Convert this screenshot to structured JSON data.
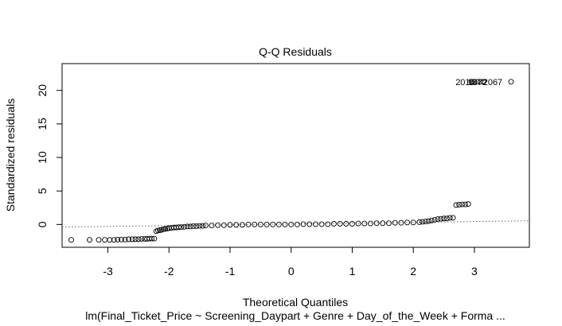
{
  "chart_data": {
    "type": "scatter",
    "title": "Q-Q Residuals",
    "xlabel": "Theoretical Quantiles",
    "ylabel": "Standardized residuals",
    "subtitle": "lm(Final_Ticket_Price ~ Screening_Daypart + Genre + Day_of_the_Week + Forma ...",
    "xlim": [
      -3.75,
      3.9
    ],
    "ylim": [
      -3.4,
      24.0
    ],
    "xticks": [
      -3,
      -2,
      -1,
      0,
      1,
      2,
      3
    ],
    "yticks": [
      0,
      5,
      10,
      15,
      20
    ],
    "xtick_labels": [
      "-3",
      "-2",
      "-1",
      "0",
      "1",
      "2",
      "3"
    ],
    "ytick_labels": [
      "0",
      "5",
      "10",
      "15",
      "20"
    ],
    "reference_line": {
      "x": [
        -3.75,
        3.9
      ],
      "y": [
        -0.38,
        0.55
      ]
    },
    "point_labels": [
      {
        "text": "2067",
        "x": 3.3,
        "y": 21.3
      },
      {
        "text": "2016",
        "x": 2.85,
        "y": 21.3
      },
      {
        "text": "1872",
        "x": 3.05,
        "y": 21.3
      }
    ],
    "series": [
      {
        "x": [
          -3.6,
          -3.3,
          -3.15,
          -3.05,
          -2.97,
          -2.9,
          -2.84,
          -2.78,
          -2.72,
          -2.66,
          -2.6,
          -2.55,
          -2.5,
          -2.45,
          -2.4,
          -2.36,
          -2.32,
          -2.28,
          -2.24,
          -2.21,
          -2.18,
          -2.15,
          -2.12,
          -2.09,
          -2.06,
          -2.03,
          -2.0,
          -1.96,
          -1.92,
          -1.88,
          -1.84,
          -1.8,
          -1.75,
          -1.7,
          -1.65,
          -1.6,
          -1.55,
          -1.5,
          -1.45,
          -1.4,
          -1.3,
          -1.2,
          -1.1,
          -1.0,
          -0.9,
          -0.8,
          -0.7,
          -0.6,
          -0.5,
          -0.4,
          -0.3,
          -0.2,
          -0.1,
          0.0,
          0.1,
          0.2,
          0.3,
          0.4,
          0.5,
          0.6,
          0.7,
          0.8,
          0.9,
          1.0,
          1.1,
          1.2,
          1.3,
          1.4,
          1.5,
          1.6,
          1.7,
          1.8,
          1.9,
          2.0,
          2.1,
          2.15,
          2.2,
          2.25,
          2.3,
          2.35,
          2.4,
          2.45,
          2.5,
          2.55,
          2.6,
          2.65,
          2.7,
          2.75,
          2.8,
          2.85,
          2.9,
          2.95,
          3.0,
          3.05,
          3.1,
          3.15,
          3.6
        ],
        "y": [
          -2.3,
          -2.3,
          -2.3,
          -2.3,
          -2.3,
          -2.3,
          -2.25,
          -2.25,
          -2.25,
          -2.2,
          -2.2,
          -2.2,
          -2.2,
          -2.15,
          -2.15,
          -2.15,
          -2.1,
          -2.1,
          -2.1,
          -1.0,
          -0.9,
          -0.85,
          -0.8,
          -0.7,
          -0.65,
          -0.6,
          -0.55,
          -0.5,
          -0.45,
          -0.45,
          -0.4,
          -0.4,
          -0.35,
          -0.3,
          -0.3,
          -0.25,
          -0.25,
          -0.2,
          -0.2,
          -0.15,
          -0.15,
          -0.1,
          -0.1,
          -0.05,
          -0.05,
          -0.05,
          0.0,
          0.0,
          0.0,
          0.0,
          0.0,
          0.0,
          0.0,
          0.0,
          0.0,
          0.05,
          0.05,
          0.05,
          0.05,
          0.05,
          0.1,
          0.1,
          0.1,
          0.1,
          0.15,
          0.15,
          0.15,
          0.2,
          0.2,
          0.2,
          0.25,
          0.25,
          0.3,
          0.3,
          0.35,
          0.4,
          0.45,
          0.5,
          0.6,
          0.7,
          0.8,
          0.85,
          0.9,
          0.9,
          1.0,
          1.0,
          2.9,
          2.95,
          3.0,
          3.0,
          3.05,
          21.3,
          21.3,
          21.3,
          21.3,
          21.3,
          21.3
        ]
      }
    ]
  }
}
